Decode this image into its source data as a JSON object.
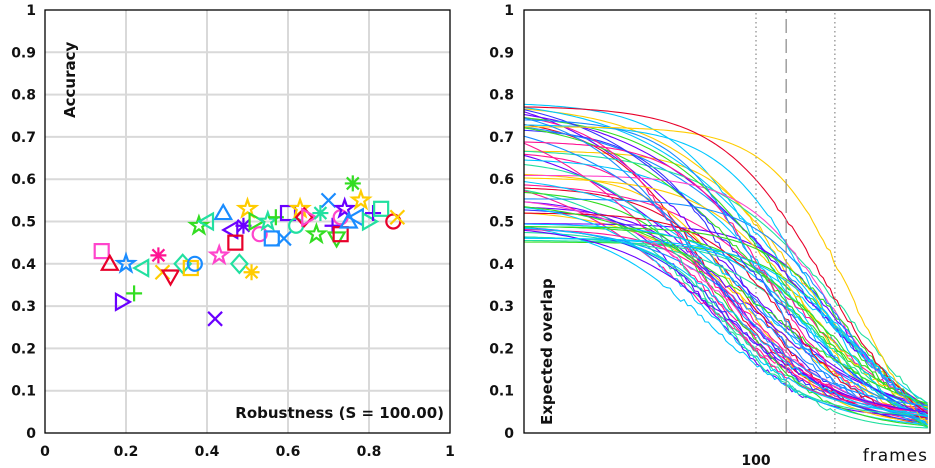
{
  "chart_data": [
    {
      "type": "scatter",
      "xlabel": "Robustness (S = 100.00)",
      "ylabel": "Accuracy",
      "xlim": [
        0,
        1
      ],
      "ylim": [
        0,
        1
      ],
      "x_ticks": [
        "0",
        "0.2",
        "0.4",
        "0.6",
        "0.8",
        "1"
      ],
      "y_ticks": [
        "0",
        "0.1",
        "0.2",
        "0.3",
        "0.4",
        "0.5",
        "0.6",
        "0.7",
        "0.8",
        "0.9",
        "1"
      ],
      "grid": true,
      "points": [
        {
          "x": 0.14,
          "y": 0.43,
          "marker": "square",
          "color": "#ff44cc"
        },
        {
          "x": 0.16,
          "y": 0.4,
          "marker": "triangle-up",
          "color": "#e8002a"
        },
        {
          "x": 0.19,
          "y": 0.31,
          "marker": "triangle-right",
          "color": "#6a00ff"
        },
        {
          "x": 0.2,
          "y": 0.4,
          "marker": "star",
          "color": "#1a8cff"
        },
        {
          "x": 0.22,
          "y": 0.33,
          "marker": "plus",
          "color": "#33dd22"
        },
        {
          "x": 0.24,
          "y": 0.39,
          "marker": "triangle-left",
          "color": "#22e0a0"
        },
        {
          "x": 0.28,
          "y": 0.42,
          "marker": "asterisk",
          "color": "#ff1493"
        },
        {
          "x": 0.29,
          "y": 0.38,
          "marker": "x",
          "color": "#ffcc00"
        },
        {
          "x": 0.31,
          "y": 0.37,
          "marker": "triangle-down",
          "color": "#e8002a"
        },
        {
          "x": 0.34,
          "y": 0.4,
          "marker": "diamond",
          "color": "#22e0a0"
        },
        {
          "x": 0.36,
          "y": 0.39,
          "marker": "square",
          "color": "#ffcc00"
        },
        {
          "x": 0.37,
          "y": 0.4,
          "marker": "circle",
          "color": "#1a8cff"
        },
        {
          "x": 0.38,
          "y": 0.49,
          "marker": "star",
          "color": "#33dd22"
        },
        {
          "x": 0.4,
          "y": 0.5,
          "marker": "triangle-left",
          "color": "#22e0a0"
        },
        {
          "x": 0.42,
          "y": 0.27,
          "marker": "x",
          "color": "#6a00ff"
        },
        {
          "x": 0.43,
          "y": 0.42,
          "marker": "star",
          "color": "#ff44cc"
        },
        {
          "x": 0.44,
          "y": 0.52,
          "marker": "triangle-up",
          "color": "#1a8cff"
        },
        {
          "x": 0.46,
          "y": 0.48,
          "marker": "triangle-left",
          "color": "#6a00ff"
        },
        {
          "x": 0.47,
          "y": 0.45,
          "marker": "square",
          "color": "#e8002a"
        },
        {
          "x": 0.48,
          "y": 0.4,
          "marker": "diamond",
          "color": "#22e0a0"
        },
        {
          "x": 0.49,
          "y": 0.49,
          "marker": "asterisk",
          "color": "#6a00ff"
        },
        {
          "x": 0.5,
          "y": 0.53,
          "marker": "star",
          "color": "#ffcc00"
        },
        {
          "x": 0.51,
          "y": 0.38,
          "marker": "asterisk",
          "color": "#ffcc00"
        },
        {
          "x": 0.52,
          "y": 0.5,
          "marker": "triangle-right",
          "color": "#33dd22"
        },
        {
          "x": 0.53,
          "y": 0.47,
          "marker": "circle",
          "color": "#ff44cc"
        },
        {
          "x": 0.55,
          "y": 0.5,
          "marker": "star",
          "color": "#22e0a0"
        },
        {
          "x": 0.56,
          "y": 0.46,
          "marker": "square",
          "color": "#1a8cff"
        },
        {
          "x": 0.57,
          "y": 0.51,
          "marker": "plus",
          "color": "#33dd22"
        },
        {
          "x": 0.59,
          "y": 0.46,
          "marker": "x",
          "color": "#1a8cff"
        },
        {
          "x": 0.6,
          "y": 0.52,
          "marker": "square",
          "color": "#6a00ff"
        },
        {
          "x": 0.62,
          "y": 0.49,
          "marker": "circle",
          "color": "#22e0a0"
        },
        {
          "x": 0.63,
          "y": 0.53,
          "marker": "star",
          "color": "#ffcc00"
        },
        {
          "x": 0.64,
          "y": 0.51,
          "marker": "diamond",
          "color": "#e8002a"
        },
        {
          "x": 0.65,
          "y": 0.51,
          "marker": "triangle-right",
          "color": "#ff44cc"
        },
        {
          "x": 0.67,
          "y": 0.47,
          "marker": "star",
          "color": "#33dd22"
        },
        {
          "x": 0.68,
          "y": 0.52,
          "marker": "asterisk",
          "color": "#22e0a0"
        },
        {
          "x": 0.7,
          "y": 0.55,
          "marker": "x",
          "color": "#1a8cff"
        },
        {
          "x": 0.71,
          "y": 0.49,
          "marker": "plus",
          "color": "#6a00ff"
        },
        {
          "x": 0.72,
          "y": 0.46,
          "marker": "triangle-down",
          "color": "#33dd22"
        },
        {
          "x": 0.73,
          "y": 0.51,
          "marker": "circle",
          "color": "#ff44cc"
        },
        {
          "x": 0.73,
          "y": 0.47,
          "marker": "square",
          "color": "#e8002a"
        },
        {
          "x": 0.74,
          "y": 0.53,
          "marker": "star",
          "color": "#6a00ff"
        },
        {
          "x": 0.75,
          "y": 0.5,
          "marker": "triangle-up",
          "color": "#1a8cff"
        },
        {
          "x": 0.76,
          "y": 0.59,
          "marker": "asterisk",
          "color": "#33dd22"
        },
        {
          "x": 0.77,
          "y": 0.51,
          "marker": "triangle-left",
          "color": "#1a8cff"
        },
        {
          "x": 0.78,
          "y": 0.55,
          "marker": "star",
          "color": "#ffcc00"
        },
        {
          "x": 0.8,
          "y": 0.5,
          "marker": "triangle-right",
          "color": "#22e0a0"
        },
        {
          "x": 0.81,
          "y": 0.52,
          "marker": "plus",
          "color": "#6a00ff"
        },
        {
          "x": 0.83,
          "y": 0.53,
          "marker": "square",
          "color": "#22e0a0"
        },
        {
          "x": 0.86,
          "y": 0.5,
          "marker": "circle",
          "color": "#e8002a"
        },
        {
          "x": 0.87,
          "y": 0.51,
          "marker": "x",
          "color": "#ffcc00"
        }
      ]
    },
    {
      "type": "line",
      "xlabel": "frames",
      "ylabel": "Expected overlap",
      "ylim": [
        0,
        1
      ],
      "x_ticks": [
        "100"
      ],
      "y_ticks": [
        "0",
        "0.1",
        "0.2",
        "0.3",
        "0.4",
        "0.5",
        "0.6",
        "0.7",
        "0.8",
        "0.9",
        "1"
      ],
      "reference_lines": [
        {
          "x": 100,
          "style": "dotted"
        },
        {
          "x": 113,
          "style": "dashed"
        },
        {
          "x": 134,
          "style": "dotted"
        }
      ],
      "x_max": 175,
      "series_start_range": [
        0.45,
        0.78
      ],
      "series_end_range": [
        0.01,
        0.07
      ],
      "n_series": 60
    }
  ]
}
